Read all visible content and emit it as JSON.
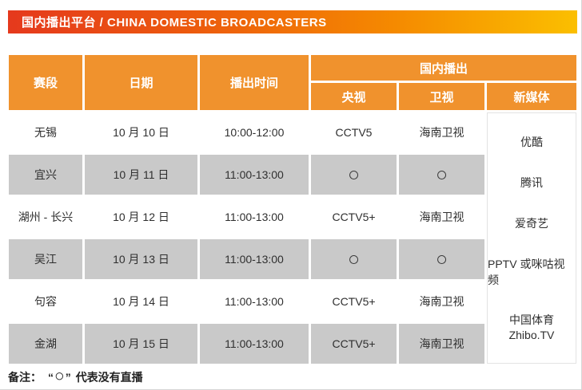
{
  "banner": {
    "title": "国内播出平台 / CHINA DOMESTIC BROADCASTERS"
  },
  "table": {
    "header": {
      "stage": "赛段",
      "date": "日期",
      "time": "播出时间",
      "domestic_group": "国内播出",
      "cctv": "央视",
      "satellite": "卫视",
      "new_media": "新媒体"
    },
    "rows": [
      {
        "stage": "无锡",
        "date": "10 月 10 日",
        "time": "10:00-12:00",
        "cctv": "CCTV5",
        "satellite": "海南卫视"
      },
      {
        "stage": "宜兴",
        "date": "10 月 11 日",
        "time": "11:00-13:00",
        "cctv": "○",
        "satellite": "○"
      },
      {
        "stage": "湖州 - 长兴",
        "date": "10 月 12 日",
        "time": "11:00-13:00",
        "cctv": "CCTV5+",
        "satellite": "海南卫视"
      },
      {
        "stage": "吴江",
        "date": "10 月 13 日",
        "time": "11:00-13:00",
        "cctv": "○",
        "satellite": "○"
      },
      {
        "stage": "句容",
        "date": "10 月 14 日",
        "time": "11:00-13:00",
        "cctv": "CCTV5+",
        "satellite": "海南卫视"
      },
      {
        "stage": "金湖",
        "date": "10 月 15 日",
        "time": "11:00-13:00",
        "cctv": "CCTV5+",
        "satellite": "海南卫视"
      }
    ],
    "new_media_items": [
      "优酷",
      "腾讯",
      "爱奇艺",
      "PPTV 或咪咕视频",
      "中国体育",
      "Zhibo.TV"
    ]
  },
  "note": {
    "label": "备注：",
    "open_quote": "“",
    "quoted_symbol": "○",
    "close_quote": "”",
    "meaning": "代表没有直播"
  },
  "colors": {
    "banner-start": "#e5391d",
    "banner-mid": "#f58a00",
    "banner-end": "#fbbf00",
    "header-orange": "#f0922d",
    "row-gray": "#c9c9c9",
    "text-dark": "#2f2f2f"
  }
}
